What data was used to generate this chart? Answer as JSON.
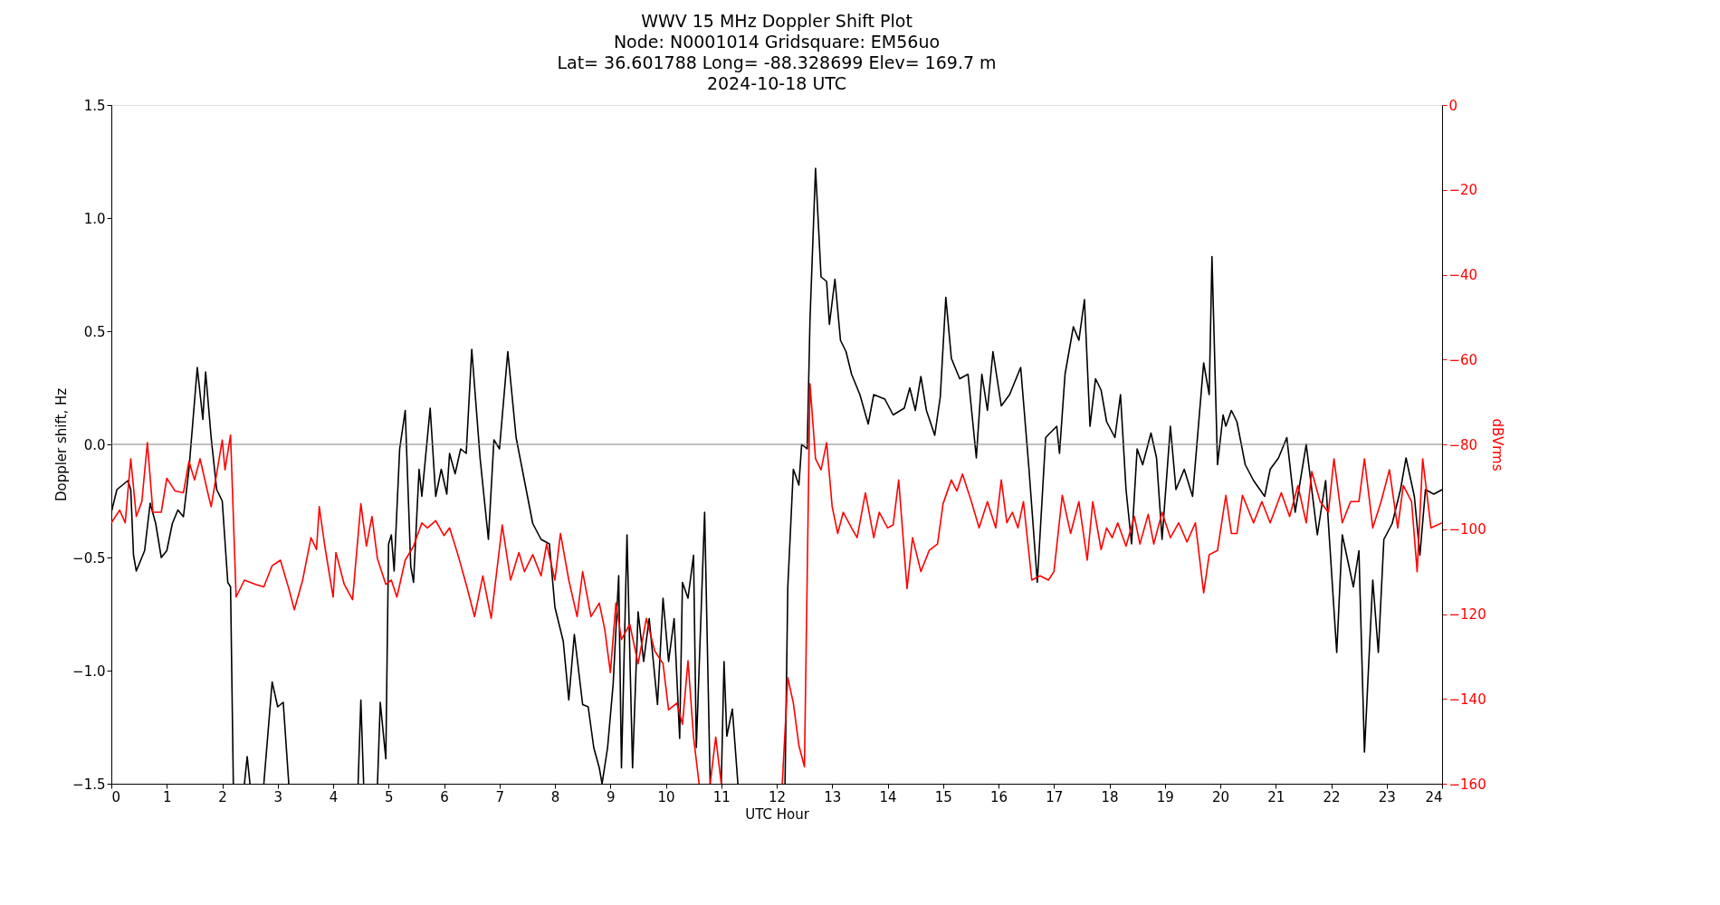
{
  "chart_data": {
    "type": "line",
    "title": "WWV 15 MHz Doppler Shift Plot",
    "subtitle": "Node:  N0001014     Gridsquare:  EM56uo\nLat= 36.601788    Long= -88.328699    Elev= 169.7 m\n2024-10-18  UTC",
    "xlabel": "UTC Hour",
    "ylabel": "Doppler shift, Hz",
    "y2label": "dBVrms",
    "xlim": [
      0,
      24
    ],
    "xticks": [
      0,
      1,
      2,
      3,
      4,
      5,
      6,
      7,
      8,
      9,
      10,
      11,
      12,
      13,
      14,
      15,
      16,
      17,
      18,
      19,
      20,
      21,
      22,
      23,
      24
    ],
    "ylim": [
      -1.5,
      1.5
    ],
    "yticks": [
      {
        "value": -1.5,
        "label": "−1.5"
      },
      {
        "value": -1.0,
        "label": "−1.0"
      },
      {
        "value": -0.5,
        "label": "−0.5"
      },
      {
        "value": 0.0,
        "label": "0.0"
      },
      {
        "value": 0.5,
        "label": "0.5"
      },
      {
        "value": 1.0,
        "label": "1.0"
      },
      {
        "value": 1.5,
        "label": "1.5"
      }
    ],
    "y2lim": [
      -160,
      0
    ],
    "y2ticks": [
      {
        "value": -160,
        "label": "−160"
      },
      {
        "value": -140,
        "label": "−140"
      },
      {
        "value": -120,
        "label": "−120"
      },
      {
        "value": -100,
        "label": "−100"
      },
      {
        "value": -80,
        "label": "−80"
      },
      {
        "value": -60,
        "label": "−60"
      },
      {
        "value": -40,
        "label": "−40"
      },
      {
        "value": -20,
        "label": "−20"
      },
      {
        "value": 0,
        "label": "0"
      }
    ],
    "grid": false,
    "legend": false,
    "marker": "none",
    "line_style": "solid",
    "ref_lines": [
      {
        "axis": "y",
        "value": 0,
        "color": "#808080"
      }
    ],
    "series": [
      {
        "color": "#000000",
        "axis": "y",
        "x": [
          0.0,
          0.1,
          0.3,
          0.35,
          0.4,
          0.45,
          0.6,
          0.7,
          0.8,
          0.9,
          1.0,
          1.1,
          1.2,
          1.3,
          1.4,
          1.55,
          1.65,
          1.7,
          1.8,
          1.9,
          2.0,
          2.1,
          2.15,
          2.2,
          2.3,
          2.4,
          2.45,
          2.5,
          2.6,
          2.75,
          2.9,
          3.0,
          3.1,
          3.2,
          3.8,
          4.45,
          4.5,
          4.55,
          4.7,
          4.8,
          4.85,
          4.95,
          5.0,
          5.05,
          5.1,
          5.2,
          5.3,
          5.4,
          5.45,
          5.55,
          5.6,
          5.75,
          5.85,
          5.95,
          6.05,
          6.1,
          6.2,
          6.3,
          6.4,
          6.5,
          6.65,
          6.8,
          6.9,
          7.0,
          7.15,
          7.3,
          7.45,
          7.6,
          7.75,
          7.9,
          8.0,
          8.15,
          8.25,
          8.35,
          8.5,
          8.6,
          8.7,
          8.8,
          8.85,
          8.95,
          9.05,
          9.15,
          9.2,
          9.3,
          9.4,
          9.5,
          9.6,
          9.7,
          9.85,
          9.95,
          10.05,
          10.15,
          10.25,
          10.3,
          10.4,
          10.5,
          10.55,
          10.7,
          10.8,
          10.9,
          11.0,
          11.05,
          11.1,
          11.2,
          11.3,
          11.7,
          12.15,
          12.2,
          12.3,
          12.4,
          12.45,
          12.55,
          12.6,
          12.7,
          12.8,
          12.9,
          12.95,
          13.05,
          13.15,
          13.25,
          13.35,
          13.5,
          13.65,
          13.75,
          13.95,
          14.1,
          14.3,
          14.4,
          14.5,
          14.6,
          14.7,
          14.85,
          14.95,
          15.05,
          15.15,
          15.3,
          15.45,
          15.6,
          15.7,
          15.8,
          15.9,
          16.05,
          16.2,
          16.4,
          16.55,
          16.7,
          16.85,
          17.05,
          17.1,
          17.2,
          17.35,
          17.45,
          17.55,
          17.65,
          17.75,
          17.85,
          17.95,
          18.1,
          18.2,
          18.3,
          18.4,
          18.5,
          18.6,
          18.75,
          18.85,
          18.95,
          19.1,
          19.2,
          19.35,
          19.5,
          19.7,
          19.8,
          19.85,
          19.95,
          20.05,
          20.1,
          20.2,
          20.3,
          20.45,
          20.6,
          20.8,
          20.9,
          21.05,
          21.2,
          21.35,
          21.55,
          21.75,
          21.9,
          22.1,
          22.2,
          22.4,
          22.5,
          22.6,
          22.75,
          22.85,
          22.95,
          23.1,
          23.25,
          23.35,
          23.5,
          23.6,
          23.7,
          23.85,
          24.0
        ],
        "values": [
          -0.3,
          -0.2,
          -0.16,
          -0.2,
          -0.49,
          -0.56,
          -0.47,
          -0.26,
          -0.35,
          -0.5,
          -0.47,
          -0.35,
          -0.29,
          -0.32,
          -0.11,
          0.34,
          0.11,
          0.32,
          0.03,
          -0.2,
          -0.25,
          -0.61,
          -0.63,
          -1.5,
          null,
          -1.5,
          -1.38,
          -1.5,
          null,
          -1.5,
          -1.05,
          -1.16,
          -1.14,
          -1.5,
          null,
          -1.5,
          -1.13,
          -1.5,
          null,
          -1.5,
          -1.14,
          -1.39,
          -0.44,
          -0.4,
          -0.56,
          -0.02,
          0.15,
          -0.54,
          -0.61,
          -0.11,
          -0.23,
          0.16,
          -0.23,
          -0.11,
          -0.22,
          -0.04,
          -0.13,
          -0.02,
          -0.04,
          0.42,
          -0.06,
          -0.42,
          0.02,
          -0.02,
          0.41,
          0.03,
          -0.16,
          -0.35,
          -0.42,
          -0.44,
          -0.72,
          -0.87,
          -1.13,
          -0.84,
          -1.15,
          -1.16,
          -1.34,
          -1.43,
          -1.5,
          -1.34,
          -1.06,
          -0.58,
          -1.43,
          -0.4,
          -1.43,
          -0.74,
          -0.96,
          -0.77,
          -1.15,
          -0.68,
          -0.96,
          -0.77,
          -1.3,
          -0.61,
          -0.68,
          -0.49,
          -1.34,
          -0.3,
          -1.5,
          null,
          -1.5,
          -0.96,
          -1.29,
          -1.17,
          -1.5,
          null,
          -1.5,
          -0.63,
          -0.11,
          -0.18,
          0.0,
          -0.02,
          0.55,
          1.22,
          0.74,
          0.72,
          0.53,
          0.73,
          0.46,
          0.41,
          0.31,
          0.22,
          0.09,
          0.22,
          0.2,
          0.13,
          0.16,
          0.25,
          0.15,
          0.3,
          0.15,
          0.04,
          0.21,
          0.65,
          0.38,
          0.29,
          0.31,
          -0.06,
          0.31,
          0.15,
          0.41,
          0.17,
          0.22,
          0.34,
          -0.11,
          -0.61,
          0.03,
          0.08,
          -0.04,
          0.31,
          0.52,
          0.46,
          0.64,
          0.08,
          0.29,
          0.24,
          0.1,
          0.03,
          0.22,
          -0.2,
          -0.44,
          -0.02,
          -0.09,
          0.05,
          -0.06,
          -0.42,
          0.08,
          -0.2,
          -0.11,
          -0.23,
          0.36,
          0.22,
          0.83,
          -0.09,
          0.13,
          0.08,
          0.15,
          0.1,
          -0.09,
          -0.16,
          -0.23,
          -0.11,
          -0.06,
          0.03,
          -0.3,
          0.0,
          -0.4,
          -0.16,
          -0.92,
          -0.4,
          -0.63,
          -0.47,
          -1.36,
          -0.6,
          -0.92,
          -0.42,
          -0.35,
          -0.2,
          -0.06,
          -0.23,
          -0.49,
          -0.2,
          -0.22,
          -0.2
        ]
      },
      {
        "color": "#ff0000",
        "axis": "y2",
        "x": [
          0.0,
          0.15,
          0.25,
          0.35,
          0.45,
          0.55,
          0.65,
          0.75,
          0.9,
          1.0,
          1.15,
          1.3,
          1.4,
          1.5,
          1.6,
          1.75,
          1.8,
          2.0,
          2.05,
          2.15,
          2.25,
          2.4,
          2.6,
          2.75,
          2.9,
          3.05,
          3.2,
          3.3,
          3.45,
          3.6,
          3.7,
          3.75,
          3.85,
          4.0,
          4.05,
          4.2,
          4.35,
          4.5,
          4.6,
          4.7,
          4.8,
          4.95,
          5.05,
          5.15,
          5.3,
          5.45,
          5.6,
          5.7,
          5.85,
          6.0,
          6.1,
          6.25,
          6.4,
          6.55,
          6.7,
          6.85,
          6.95,
          7.05,
          7.2,
          7.35,
          7.45,
          7.6,
          7.75,
          7.85,
          8.0,
          8.1,
          8.25,
          8.4,
          8.5,
          8.65,
          8.8,
          8.9,
          9.0,
          9.1,
          9.2,
          9.35,
          9.5,
          9.65,
          9.8,
          9.95,
          10.05,
          10.2,
          10.3,
          10.4,
          10.5,
          10.6,
          10.7,
          10.8,
          10.9,
          11.0,
          11.5,
          12.1,
          12.2,
          12.3,
          12.4,
          12.5,
          12.6,
          12.7,
          12.8,
          12.9,
          13.0,
          13.1,
          13.2,
          13.35,
          13.45,
          13.6,
          13.75,
          13.85,
          14.0,
          14.1,
          14.2,
          14.35,
          14.45,
          14.6,
          14.75,
          14.9,
          15.0,
          15.15,
          15.25,
          15.35,
          15.5,
          15.65,
          15.8,
          15.95,
          16.05,
          16.15,
          16.25,
          16.35,
          16.45,
          16.6,
          16.75,
          16.9,
          17.0,
          17.15,
          17.3,
          17.45,
          17.6,
          17.7,
          17.85,
          17.95,
          18.05,
          18.15,
          18.3,
          18.45,
          18.55,
          18.7,
          18.8,
          18.95,
          19.1,
          19.25,
          19.4,
          19.55,
          19.7,
          19.8,
          19.95,
          20.1,
          20.2,
          20.3,
          20.4,
          20.6,
          20.75,
          20.9,
          21.1,
          21.25,
          21.4,
          21.55,
          21.65,
          21.8,
          21.95,
          22.05,
          22.2,
          22.35,
          22.5,
          22.6,
          22.75,
          22.9,
          23.05,
          23.2,
          23.3,
          23.45,
          23.55,
          23.65,
          23.8,
          24.0
        ],
        "values": [
          -98.5,
          -95.5,
          -98.5,
          -83.4,
          -97,
          -93.5,
          -79.6,
          -96,
          -96,
          -88,
          -91,
          -91.4,
          -84,
          -88.4,
          -83.4,
          -92,
          -94.7,
          -79,
          -86,
          -77.8,
          -116,
          -112,
          -113,
          -113.6,
          -108.6,
          -107.3,
          -114,
          -119,
          -112,
          -102,
          -104.8,
          -94.7,
          -104,
          -116,
          -105.5,
          -113,
          -116.6,
          -94,
          -104,
          -97,
          -107,
          -113,
          -112,
          -116,
          -107.3,
          -104,
          -98.5,
          -99.7,
          -98,
          -101.5,
          -99.7,
          -106,
          -113,
          -120.6,
          -111,
          -121,
          -110,
          -99,
          -112,
          -105.5,
          -110,
          -106,
          -111,
          -103.5,
          -112,
          -101,
          -112,
          -120.6,
          -110,
          -120.6,
          -117.4,
          -123.7,
          -133.8,
          -117.4,
          -126,
          -122.4,
          -131.7,
          -121,
          -128.7,
          -131.7,
          -142.6,
          -141,
          -146,
          -131,
          -149,
          -160,
          null,
          -160,
          -149,
          -160,
          null,
          -160,
          -135,
          -141,
          -151,
          -156,
          -65.7,
          -83.4,
          -86,
          -79.6,
          -94.7,
          -101,
          -96,
          -99.7,
          -102,
          -91.4,
          -102,
          -96,
          -99.7,
          -99,
          -88.4,
          -114,
          -102,
          -110,
          -105,
          -103.5,
          -94,
          -88.4,
          -91,
          -87,
          -93,
          -99.7,
          -93.5,
          -99.7,
          -88.4,
          -98.5,
          -96,
          -99.7,
          -93.5,
          -112,
          -111,
          -112,
          -110,
          -92,
          -101,
          -93.5,
          -107.3,
          -93.5,
          -104.8,
          -99.7,
          -102,
          -98.5,
          -104,
          -97,
          -103.5,
          -96.5,
          -103.5,
          -96,
          -102,
          -98.5,
          -103,
          -98.5,
          -115,
          -106,
          -105,
          -92,
          -101,
          -101,
          -92,
          -98.5,
          -93.5,
          -98.5,
          -91.4,
          -97,
          -89.7,
          -98.5,
          -86.4,
          -93.5,
          -96,
          -83.4,
          -98.5,
          -93.5,
          -93.5,
          -83.4,
          -99.7,
          -93.5,
          -86,
          -99.7,
          -89.7,
          -93.5,
          -110,
          -83.4,
          -99.7,
          -98.5
        ]
      }
    ]
  }
}
